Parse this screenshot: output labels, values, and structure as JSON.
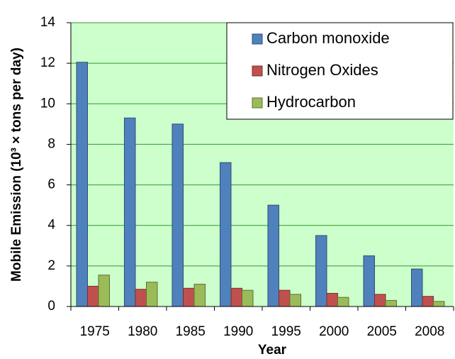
{
  "chart_data": {
    "type": "bar",
    "xlabel": "Year",
    "ylabel": "Mobile Emission (10³ × tons per day)",
    "categories": [
      "1975",
      "1980",
      "1985",
      "1990",
      "1995",
      "2000",
      "2005",
      "2008"
    ],
    "series": [
      {
        "name": "Carbon monoxide",
        "color": "#4f81bd",
        "values": [
          12.05,
          9.3,
          9.0,
          7.1,
          5.0,
          3.5,
          2.5,
          1.85
        ]
      },
      {
        "name": "Nitrogen Oxides",
        "color": "#c0504d",
        "values": [
          1.0,
          0.85,
          0.9,
          0.9,
          0.8,
          0.65,
          0.6,
          0.5
        ]
      },
      {
        "name": "Hydrocarbon",
        "color": "#9bbb59",
        "values": [
          1.55,
          1.2,
          1.1,
          0.8,
          0.6,
          0.45,
          0.3,
          0.25
        ]
      }
    ],
    "ylim": [
      0,
      14
    ],
    "yticks": [
      0,
      2,
      4,
      6,
      8,
      10,
      12,
      14
    ],
    "grid": true,
    "legend": "upper right"
  }
}
